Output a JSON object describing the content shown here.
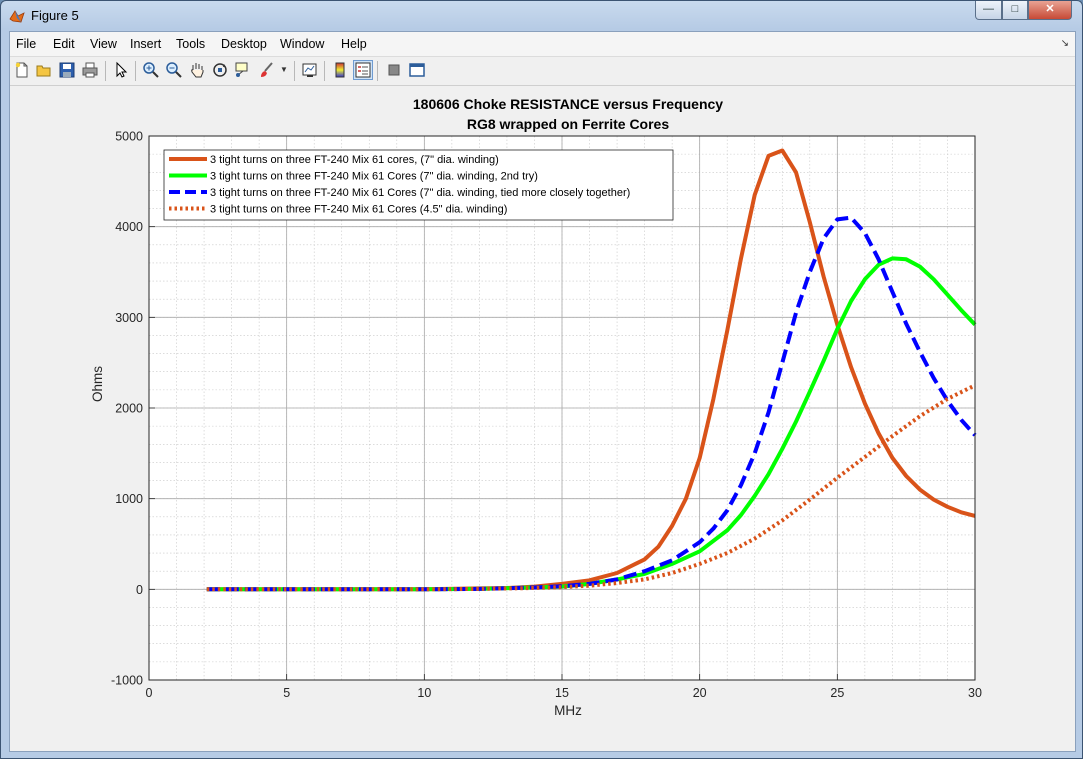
{
  "window": {
    "title": "Figure 5"
  },
  "menu": [
    "File",
    "Edit",
    "View",
    "Insert",
    "Tools",
    "Desktop",
    "Window",
    "Help"
  ],
  "toolbar": [
    "new-figure",
    "open-file",
    "save",
    "print",
    "edit-plot-arrow",
    "zoom-in",
    "zoom-out",
    "pan",
    "rotate-3d",
    "data-cursor",
    "brush",
    "link-plot",
    "insert-colorbar",
    "insert-legend",
    "hide-plot-tools",
    "show-plot-tools"
  ],
  "colors": {
    "window_chrome": "#b6cbe5",
    "figure_bg": "#f0f0f0",
    "axes_bg": "#ffffff"
  },
  "chart_data": {
    "type": "line",
    "title": "180606 Choke RESISTANCE versus Frequency",
    "subtitle": "RG8 wrapped on Ferrite Cores",
    "xlabel": "MHz",
    "ylabel": "Ohms",
    "xlim": [
      0,
      30
    ],
    "ylim": [
      -1000,
      5000
    ],
    "xticks": [
      0,
      5,
      10,
      15,
      20,
      25,
      30
    ],
    "yticks": [
      -1000,
      0,
      1000,
      2000,
      3000,
      4000,
      5000
    ],
    "grid": "major and minor",
    "legend_position": "top-left",
    "series": [
      {
        "name": "3 tight turns on three FT-240 Mix 61 cores, (7\" dia. winding)",
        "color": "#d95319",
        "style": "solid",
        "x": [
          2.1,
          4,
          6,
          8,
          10,
          12,
          13,
          14,
          15,
          16,
          17,
          18,
          18.5,
          19,
          19.5,
          20,
          20.5,
          21,
          21.5,
          22,
          22.5,
          23,
          23.5,
          24,
          24.5,
          25,
          25.5,
          26,
          26.5,
          27,
          27.5,
          28,
          28.5,
          29,
          29.5,
          30
        ],
        "y": [
          0,
          0,
          0,
          0,
          0,
          10,
          15,
          30,
          60,
          100,
          180,
          330,
          470,
          700,
          1000,
          1450,
          2100,
          2850,
          3650,
          4350,
          4780,
          4840,
          4600,
          4050,
          3450,
          2920,
          2450,
          2050,
          1720,
          1450,
          1250,
          1100,
          990,
          910,
          850,
          810
        ]
      },
      {
        "name": "3 tight turns on three FT-240 Mix 61 Cores (7\" dia. winding, 2nd try)",
        "color": "#00ff00",
        "style": "solid",
        "x": [
          2.1,
          4,
          6,
          8,
          10,
          12,
          14,
          15,
          16,
          17,
          18,
          19,
          20,
          21,
          21.5,
          22,
          22.5,
          23,
          23.5,
          24,
          24.5,
          25,
          25.5,
          26,
          26.5,
          27,
          27.5,
          28,
          28.5,
          29,
          29.5,
          30
        ],
        "y": [
          0,
          0,
          0,
          0,
          0,
          5,
          20,
          30,
          60,
          110,
          170,
          280,
          420,
          650,
          820,
          1030,
          1270,
          1550,
          1850,
          2180,
          2520,
          2870,
          3180,
          3420,
          3580,
          3650,
          3640,
          3560,
          3420,
          3250,
          3080,
          2920
        ]
      },
      {
        "name": "3 tight turns on three FT-240 Mix 61 Cores (7\" dia. winding, tied more closely together)",
        "color": "#0000ff",
        "style": "dashed",
        "x": [
          2.1,
          4,
          6,
          8,
          10,
          12,
          14,
          15,
          16,
          17,
          18,
          19,
          20,
          20.5,
          21,
          21.5,
          22,
          22.5,
          23,
          23.5,
          24,
          24.5,
          25,
          25.5,
          26,
          26.5,
          27,
          27.5,
          28,
          28.5,
          29,
          29.5,
          30
        ],
        "y": [
          0,
          0,
          0,
          0,
          0,
          5,
          20,
          35,
          60,
          110,
          200,
          320,
          520,
          670,
          870,
          1150,
          1500,
          1950,
          2500,
          3050,
          3500,
          3870,
          4080,
          4100,
          3930,
          3640,
          3280,
          2930,
          2620,
          2330,
          2080,
          1870,
          1700
        ]
      },
      {
        "name": "3 tight turns on three FT-240 Mix 61 Cores (4.5\" dia. winding)",
        "color": "#d95319",
        "style": "dotted",
        "x": [
          2.1,
          4,
          6,
          8,
          10,
          12,
          14,
          15,
          16,
          17,
          18,
          19,
          20,
          21,
          22,
          23,
          24,
          25,
          26,
          27,
          28,
          29,
          30
        ],
        "y": [
          0,
          0,
          0,
          0,
          0,
          5,
          15,
          25,
          40,
          70,
          110,
          180,
          280,
          400,
          560,
          760,
          990,
          1230,
          1460,
          1690,
          1910,
          2100,
          2250
        ]
      }
    ]
  }
}
